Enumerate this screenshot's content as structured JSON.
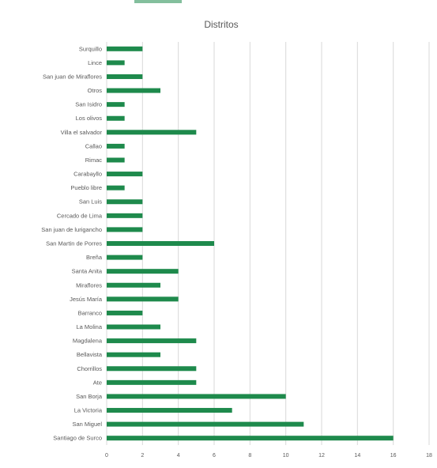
{
  "chart_data": {
    "type": "bar",
    "orientation": "horizontal",
    "title": "Distritos",
    "xlabel": "",
    "ylabel": "",
    "xlim": [
      0,
      18
    ],
    "xticks": [
      0,
      2,
      4,
      6,
      8,
      10,
      12,
      14,
      16,
      18
    ],
    "grid": true,
    "legend": "none",
    "bar_color": "#1e8a4c",
    "grid_color": "#d9d9d9",
    "label_color": "#595959",
    "categories": [
      "Surquillo",
      "Lince",
      "San juan de Miraflores",
      "Otros",
      "San Isidro",
      "Los olivos",
      "Villa el salvador",
      "Callao",
      "Rimac",
      "Carabayllo",
      "Pueblo libre",
      "San Luis",
      "Cercado de Lima",
      "San juan de lurigancho",
      "San Martin de Porres",
      "Breña",
      "Santa Anita",
      "Miraflores",
      "Jesús María",
      "Barranco",
      "La Molina",
      "Magdalena",
      "Bellavista",
      "Chorrillos",
      "Ate",
      "San Borja",
      "La Victoria",
      "San Miguel",
      "Santiago de Surco"
    ],
    "values": [
      2,
      1,
      2,
      3,
      1,
      1,
      5,
      1,
      1,
      2,
      1,
      2,
      2,
      2,
      6,
      2,
      4,
      3,
      4,
      2,
      3,
      5,
      3,
      5,
      5,
      10,
      7,
      11,
      16
    ]
  }
}
